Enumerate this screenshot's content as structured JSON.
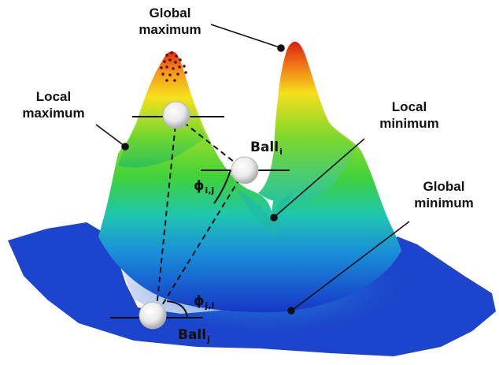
{
  "labels": {
    "global_maximum": [
      "Global",
      "maximum"
    ],
    "local_maximum": [
      "Local",
      "maximum"
    ],
    "local_minimum": [
      "Local",
      "minimum"
    ],
    "global_minimum": [
      "Global",
      "minimum"
    ]
  },
  "balls": {
    "ball_i": {
      "base": "Ball",
      "sub": "i"
    },
    "ball_j": {
      "base": "Ball",
      "sub": "j"
    }
  },
  "angles": {
    "phi_ij": {
      "base": "ϕ",
      "sub": "i,j"
    },
    "phi_ji": {
      "base": "ϕ",
      "sub": "j,i"
    }
  },
  "colors": {
    "peak": "#e02a10",
    "high": "#f6e21a",
    "mid": "#3fd23a",
    "low": "#18b9c8",
    "base": "#1636c8"
  }
}
